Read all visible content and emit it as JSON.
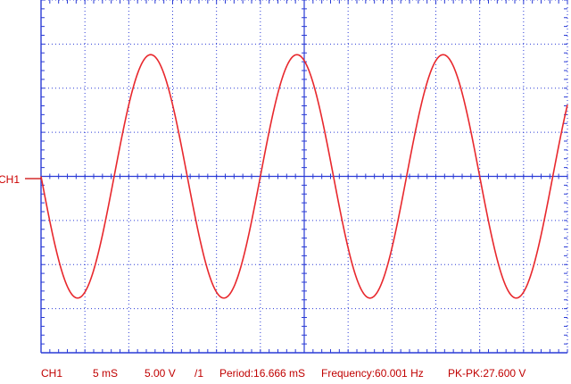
{
  "channel": {
    "marker_label": "CH1",
    "trace_color": "#e8282d",
    "marker_color": "#cc0000"
  },
  "grid": {
    "color": "#2a3bd6",
    "background": "#ffffff",
    "divisions_x": 12,
    "divisions_y": 8
  },
  "status": {
    "channel": "CH1",
    "timebase": "5 mS",
    "volts_div": "5.00 V",
    "probe": "/1",
    "period": "Period:16.666 mS",
    "frequency": "Frequency:60.001 Hz",
    "pk_pk": "PK-PK:27.600 V",
    "text_color": "#c00000"
  },
  "chart_data": {
    "type": "line",
    "x_unit": "ms",
    "y_unit": "V",
    "xlim": [
      0,
      60
    ],
    "ylim": [
      -20,
      20
    ],
    "series": [
      {
        "wave": "sine",
        "frequency_hz": 60.001,
        "amplitude_v": 13.8,
        "phase": "starts at 0 V heading negative"
      }
    ]
  }
}
